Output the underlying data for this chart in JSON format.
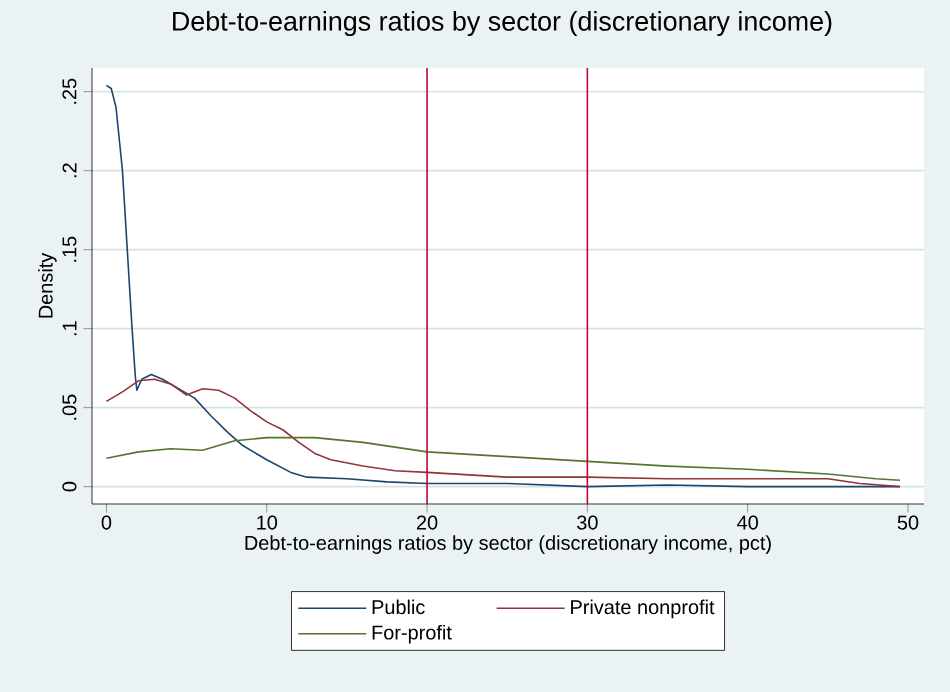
{
  "chart_data": {
    "type": "line",
    "title": "Debt-to-earnings ratios by sector (discretionary income)",
    "xlabel": "Debt-to-earnings ratios by sector (discretionary income, pct)",
    "ylabel": "Density",
    "xlim": [
      -0.9,
      51
    ],
    "ylim": [
      -0.011,
      0.265
    ],
    "xticks": [
      0,
      10,
      20,
      30,
      40,
      50
    ],
    "yticks": [
      0,
      {
        "value": 0.05,
        "label": ".05"
      },
      {
        "value": 0.1,
        "label": ".1"
      },
      {
        "value": 0.15,
        "label": ".15"
      },
      {
        "value": 0.2,
        "label": ".2"
      },
      {
        "value": 0.25,
        "label": ".25"
      }
    ],
    "grid": "y",
    "legend": "bottom",
    "line_style": "solid",
    "marker": "none",
    "ref_lines": [
      {
        "axis": "x",
        "value": 20,
        "color": "#c10534"
      },
      {
        "axis": "x",
        "value": 30,
        "color": "#c10534"
      }
    ],
    "series": [
      {
        "name": "Public",
        "color": "#1a476f",
        "x": [
          0,
          0.3,
          0.6,
          1,
          1.3,
          1.6,
          1.8,
          1.9,
          2.2,
          2.8,
          3.5,
          4.5,
          5.5,
          6.5,
          7.5,
          8.5,
          10,
          11.5,
          12.5,
          15,
          17.5,
          20,
          25,
          30,
          35,
          40,
          45,
          49.5
        ],
        "values": [
          0.254,
          0.252,
          0.24,
          0.2,
          0.15,
          0.1,
          0.07,
          0.061,
          0.068,
          0.071,
          0.068,
          0.062,
          0.056,
          0.045,
          0.035,
          0.026,
          0.017,
          0.009,
          0.006,
          0.005,
          0.003,
          0.002,
          0.002,
          0,
          0.001,
          0,
          0,
          0
        ]
      },
      {
        "name": "Private nonprofit",
        "color": "#90353b",
        "x": [
          0,
          1,
          2,
          3,
          4,
          5,
          6,
          7,
          8,
          9,
          10,
          11,
          12,
          13,
          14,
          16,
          18,
          20,
          25,
          30,
          35,
          40,
          45,
          47,
          49.5
        ],
        "values": [
          0.054,
          0.06,
          0.067,
          0.068,
          0.065,
          0.058,
          0.062,
          0.061,
          0.056,
          0.048,
          0.041,
          0.036,
          0.028,
          0.021,
          0.017,
          0.013,
          0.01,
          0.009,
          0.006,
          0.006,
          0.005,
          0.005,
          0.005,
          0.002,
          0
        ]
      },
      {
        "name": "For-profit",
        "color": "#55752f",
        "x": [
          0,
          2,
          4,
          6,
          8,
          10,
          13,
          16,
          20,
          25,
          30,
          35,
          40,
          45,
          48,
          49.5
        ],
        "values": [
          0.018,
          0.022,
          0.024,
          0.023,
          0.029,
          0.031,
          0.031,
          0.028,
          0.022,
          0.019,
          0.016,
          0.013,
          0.011,
          0.008,
          0.005,
          0.004
        ]
      }
    ]
  }
}
